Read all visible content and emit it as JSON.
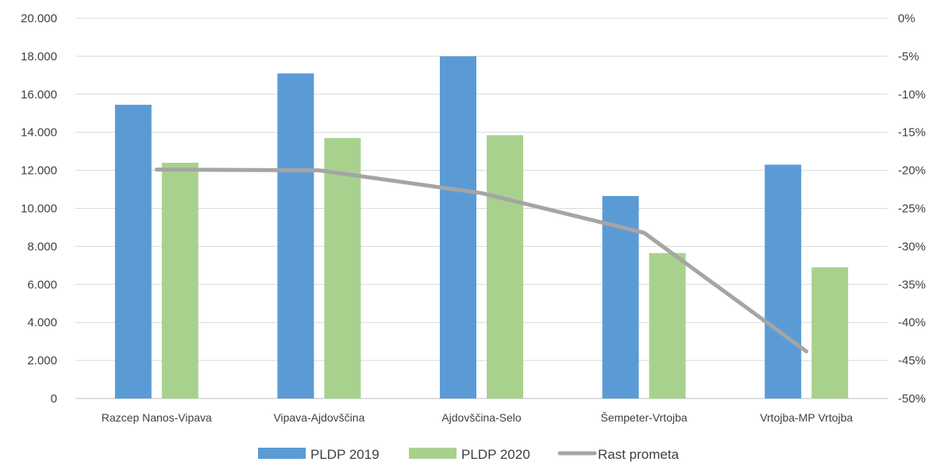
{
  "chart_data": {
    "type": "bar",
    "categories": [
      "Razcep Nanos-Vipava",
      "Vipava-Ajdovščina",
      "Ajdovščina-Selo",
      "Šempeter-Vrtojba",
      "Vrtojba-MP Vrtojba"
    ],
    "series": [
      {
        "name": "PLDP 2019",
        "type": "bar",
        "axis": "left",
        "color": "#5b9bd5",
        "values": [
          15450,
          17100,
          18000,
          10650,
          12300
        ]
      },
      {
        "name": "PLDP 2020",
        "type": "bar",
        "axis": "left",
        "color": "#a9d18e",
        "values": [
          12400,
          13700,
          13850,
          7650,
          6900
        ]
      },
      {
        "name": "Rast prometa",
        "type": "line",
        "axis": "right",
        "color": "#a5a5a5",
        "values": [
          -0.199,
          -0.2,
          -0.23,
          -0.282,
          -0.438
        ]
      }
    ],
    "y_left": {
      "ylim": [
        0,
        20000
      ],
      "ticks": [
        0,
        2000,
        4000,
        6000,
        8000,
        10000,
        12000,
        14000,
        16000,
        18000,
        20000
      ],
      "tick_labels": [
        "0",
        "2.000",
        "4.000",
        "6.000",
        "8.000",
        "10.000",
        "12.000",
        "14.000",
        "16.000",
        "18.000",
        "20.000"
      ]
    },
    "y_right": {
      "ylim": [
        -0.5,
        0
      ],
      "ticks": [
        -0.5,
        -0.45,
        -0.4,
        -0.35,
        -0.3,
        -0.25,
        -0.2,
        -0.15,
        -0.1,
        -0.05,
        0
      ],
      "tick_labels": [
        "-50%",
        "-45%",
        "-40%",
        "-35%",
        "-30%",
        "-25%",
        "-20%",
        "-15%",
        "-10%",
        "-5%",
        "0%"
      ]
    },
    "grid": true,
    "legend": "bottom"
  }
}
